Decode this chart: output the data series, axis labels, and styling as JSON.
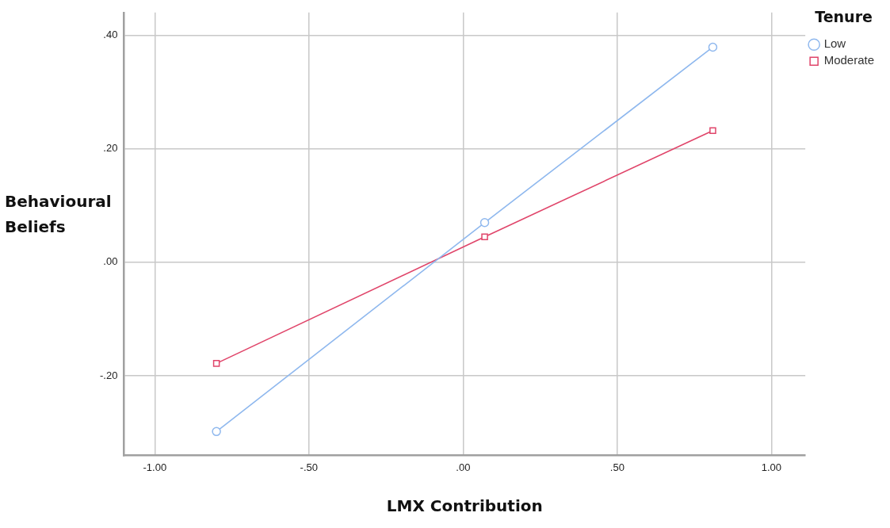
{
  "chart_data": {
    "type": "line",
    "xlabel": "LMX Contribution",
    "ylabel": "Behavioural Beliefs",
    "legend_title": "Tenure",
    "legend": "top right",
    "grid": true,
    "line_style": "solid",
    "x": [
      -0.8,
      0.07,
      0.81
    ],
    "xlim": [
      -1.1,
      1.11
    ],
    "xticks": [
      {
        "value": -1,
        "label": "-1.00"
      },
      {
        "value": -0.5,
        "label": "-.50"
      },
      {
        "value": 0,
        "label": ".00"
      },
      {
        "value": 0.5,
        "label": ".50"
      },
      {
        "value": 1,
        "label": "1.00"
      }
    ],
    "ylim": [
      -0.34,
      0.44
    ],
    "yticks": [
      {
        "value": -0.2,
        "label": "-.20"
      },
      {
        "value": 0,
        "label": ".00"
      },
      {
        "value": 0.2,
        "label": ".20"
      },
      {
        "value": 0.4,
        "label": ".40"
      }
    ],
    "series": [
      {
        "name": "Low",
        "color": "#8fb8ee",
        "marker": "circle",
        "values": [
          -0.298,
          0.07,
          0.379
        ]
      },
      {
        "name": "Moderate",
        "color": "#e0456a",
        "marker": "square",
        "values": [
          -0.178,
          0.045,
          0.232
        ]
      }
    ]
  }
}
